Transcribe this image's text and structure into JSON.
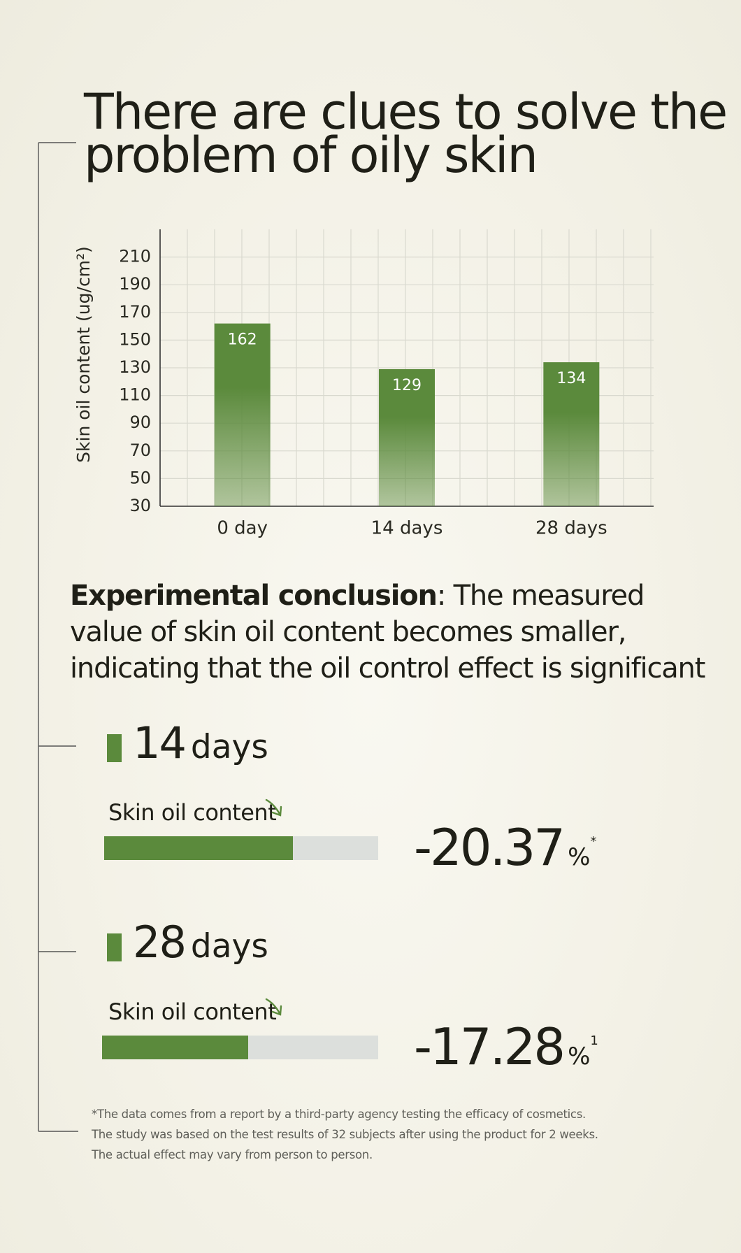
{
  "title_lines": [
    "There are clues to solve the",
    "problem of oily skin"
  ],
  "chart_data": {
    "type": "bar",
    "ylabel": "Skin oil content (ug/cm²)",
    "categories": [
      "0 day",
      "14 days",
      "28 days"
    ],
    "values": [
      162,
      129,
      134
    ],
    "color": "#5b8a3c",
    "ylim": [
      30,
      230
    ],
    "yticks": [
      30,
      50,
      70,
      90,
      110,
      130,
      150,
      170,
      190,
      210
    ],
    "grid": true
  },
  "conclusion": {
    "label": "Experimental conclusion",
    "text": ": The measured value of skin oil content becomes smaller, indicating that the oil control effect is significant"
  },
  "results": {
    "bar_lim": [
      0,
      100
    ],
    "items": [
      {
        "days": "14",
        "unit": "days",
        "metric": "Skin oil content",
        "change": "-20.37",
        "percent": "%",
        "note": "*",
        "bar": 69
      },
      {
        "days": "28",
        "unit": "days",
        "metric": "Skin oil content",
        "change": "-17.28",
        "percent": "%",
        "note": "1",
        "bar": 53
      }
    ]
  },
  "footnotes": [
    "*The data comes from a report by a third-party agency testing the efficacy of cosmetics.",
    "The study was based on the test results of 32 subjects after using the product for 2 weeks.",
    "The actual effect may vary from person to person."
  ]
}
